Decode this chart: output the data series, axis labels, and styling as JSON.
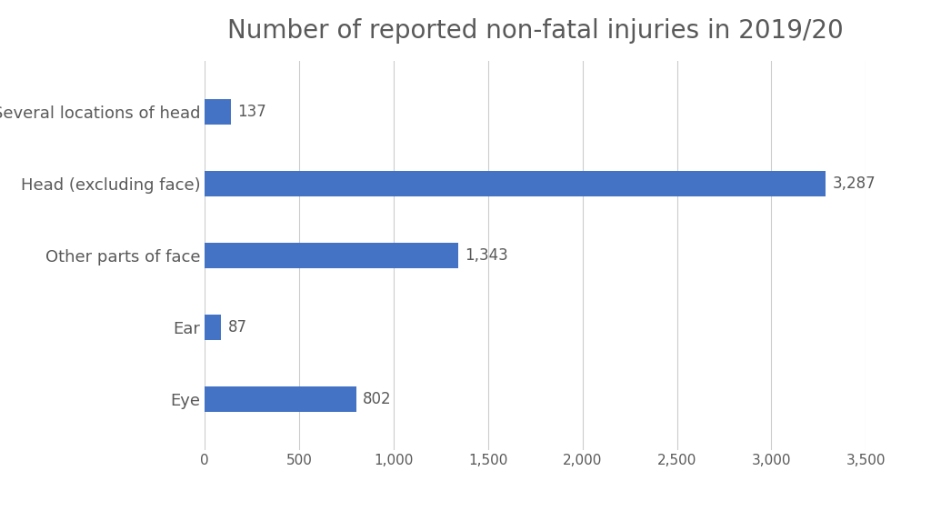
{
  "title": "Number of reported non-fatal injuries in 2019/20",
  "categories": [
    "Eye",
    "Ear",
    "Other parts of face",
    "Head (excluding face)",
    "Several locations of head"
  ],
  "values": [
    802,
    87,
    1343,
    3287,
    137
  ],
  "labels": [
    "802",
    "87",
    "1,343",
    "3,287",
    "137"
  ],
  "bar_color": "#4472C4",
  "background_color": "#ffffff",
  "xlim": [
    0,
    3500
  ],
  "xticks": [
    0,
    500,
    1000,
    1500,
    2000,
    2500,
    3000,
    3500
  ],
  "xtick_labels": [
    "0",
    "500",
    "1,000",
    "1,500",
    "2,000",
    "2,500",
    "3,000",
    "3,500"
  ],
  "title_fontsize": 20,
  "label_fontsize": 12,
  "tick_fontsize": 11,
  "bar_height": 0.35,
  "grid_color": "#cccccc",
  "text_color": "#595959",
  "ytick_label_fontsize": 13
}
